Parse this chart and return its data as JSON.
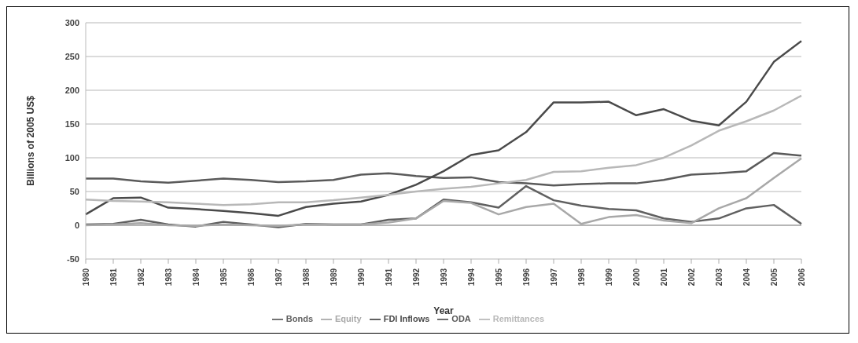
{
  "chart_data": {
    "type": "line",
    "xlabel": "Year",
    "ylabel": "Billions of 2005 US$",
    "categories": [
      "1980",
      "1981",
      "1982",
      "1983",
      "1984",
      "1985",
      "1986",
      "1987",
      "1988",
      "1989",
      "1990",
      "1991",
      "1992",
      "1993",
      "1994",
      "1995",
      "1996",
      "1997",
      "1998",
      "1999",
      "2000",
      "2001",
      "2002",
      "2003",
      "2004",
      "2005",
      "2006"
    ],
    "series": [
      {
        "name": "ODA",
        "color": "#5a5a5a",
        "values": [
          69,
          69,
          65,
          63,
          66,
          69,
          67,
          64,
          65,
          67,
          75,
          77,
          73,
          70,
          71,
          64,
          62,
          59,
          61,
          62,
          62,
          67,
          75,
          77,
          80,
          107,
          103
        ]
      },
      {
        "name": "FDI Inflows",
        "color": "#4a4a4a",
        "values": [
          16,
          40,
          41,
          26,
          24,
          21,
          18,
          14,
          27,
          32,
          35,
          45,
          60,
          80,
          104,
          111,
          138,
          182,
          182,
          183,
          163,
          172,
          155,
          148,
          183,
          242,
          273
        ]
      },
      {
        "name": "Bonds",
        "color": "#606060",
        "values": [
          1,
          2,
          8,
          1,
          -2,
          5,
          1,
          -3,
          2,
          1,
          1,
          8,
          10,
          38,
          34,
          26,
          58,
          37,
          29,
          24,
          22,
          10,
          5,
          10,
          25,
          30,
          2
        ]
      },
      {
        "name": "Equity",
        "color": "#a8a8a8",
        "values": [
          0,
          1,
          3,
          0,
          -1,
          1,
          0,
          -1,
          1,
          1,
          1,
          4,
          10,
          36,
          33,
          16,
          27,
          32,
          2,
          12,
          15,
          7,
          3,
          25,
          40,
          70,
          99
        ]
      },
      {
        "name": "Remittances",
        "color": "#b8b8b8",
        "values": [
          38,
          36,
          35,
          34,
          32,
          30,
          31,
          34,
          34,
          37,
          41,
          45,
          50,
          54,
          57,
          62,
          67,
          79,
          80,
          85,
          89,
          100,
          118,
          140,
          154,
          170,
          192
        ]
      }
    ],
    "ylim": [
      -50,
      300
    ],
    "yticks": [
      -50,
      0,
      50,
      100,
      150,
      200,
      250,
      300
    ],
    "grid": "y",
    "legend": "bottom",
    "marker": "none",
    "line_style": "solid"
  }
}
